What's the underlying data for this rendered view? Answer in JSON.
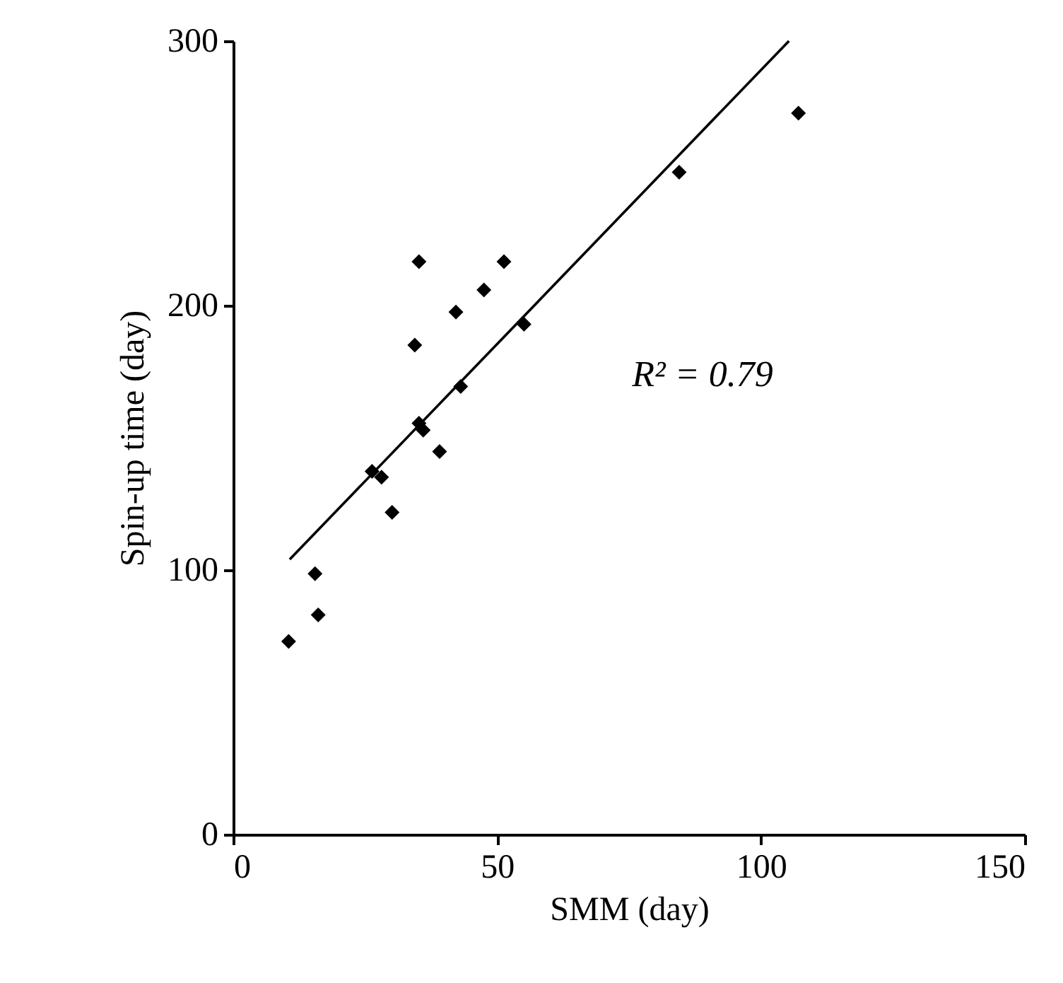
{
  "chart_data": {
    "type": "scatter",
    "xlabel": "SMM (day)",
    "ylabel": "Spin-up time (day)",
    "xlim": [
      0,
      150
    ],
    "xticks": [
      0,
      50,
      100,
      150
    ],
    "ylim": [
      0,
      300
    ],
    "yticks": [
      0,
      100,
      200,
      300
    ],
    "series": [
      {
        "marker": "diamond",
        "color": "#000000",
        "x": [
          10.5,
          15.5,
          16.1,
          26.3,
          28.1,
          30.1,
          34.4,
          35.2,
          35.2,
          36.0,
          39.1,
          42.2,
          43.1,
          47.5,
          51.3,
          55.1,
          84.5,
          107.1
        ],
        "values": [
          73,
          98.6,
          83,
          137.3,
          135.1,
          121.8,
          185,
          216.6,
          155.5,
          152.9,
          144.8,
          197.5,
          169.4,
          205.9,
          216.6,
          192.9,
          250.4,
          272.7
        ]
      },
      {
        "type": "line",
        "marker": "none",
        "color": "#000000",
        "x": [
          10.7,
          105.3
        ],
        "values": [
          104,
          300
        ]
      }
    ],
    "annotations": [
      "R² = 0.79"
    ]
  }
}
